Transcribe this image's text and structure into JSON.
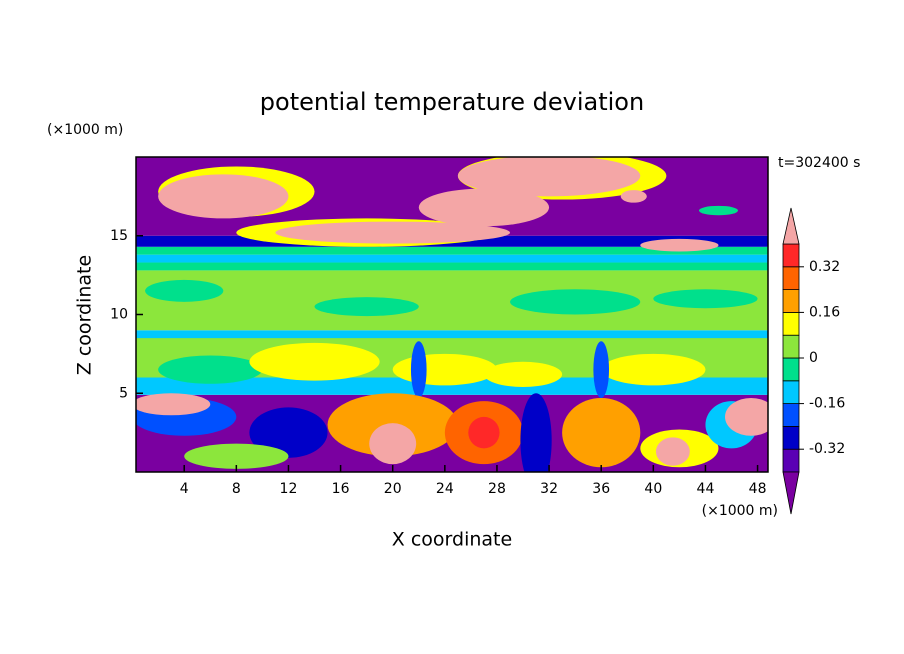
{
  "chart_data": {
    "type": "contour",
    "title": "potential temperature deviation",
    "annotation": "t=302400 s",
    "x_label": "X coordinate",
    "y_label": "Z coordinate",
    "x_unit": "(×1000 m)",
    "y_unit": "(×1000 m)",
    "xlim": [
      0.3,
      48.8
    ],
    "xticks": [
      4,
      8,
      12,
      16,
      20,
      24,
      28,
      32,
      36,
      40,
      44,
      48
    ],
    "ylim": [
      0,
      20
    ],
    "yticks": [
      5,
      10,
      15
    ],
    "levels": [
      -0.4,
      -0.32,
      -0.24,
      -0.16,
      -0.08,
      0,
      0.08,
      0.16,
      0.24,
      0.32,
      0.4
    ],
    "colors": [
      "#5a00b4",
      "#0000c8",
      "#0050ff",
      "#00c8ff",
      "#00e08c",
      "#8ce63c",
      "#ffff00",
      "#ffa000",
      "#ff6400",
      "#ff2828"
    ],
    "under_color": "#7a00a0",
    "over_color": "#f4a6a6",
    "colorbar_ticks": [
      0.32,
      0.16,
      0,
      -0.16,
      -0.32
    ]
  }
}
